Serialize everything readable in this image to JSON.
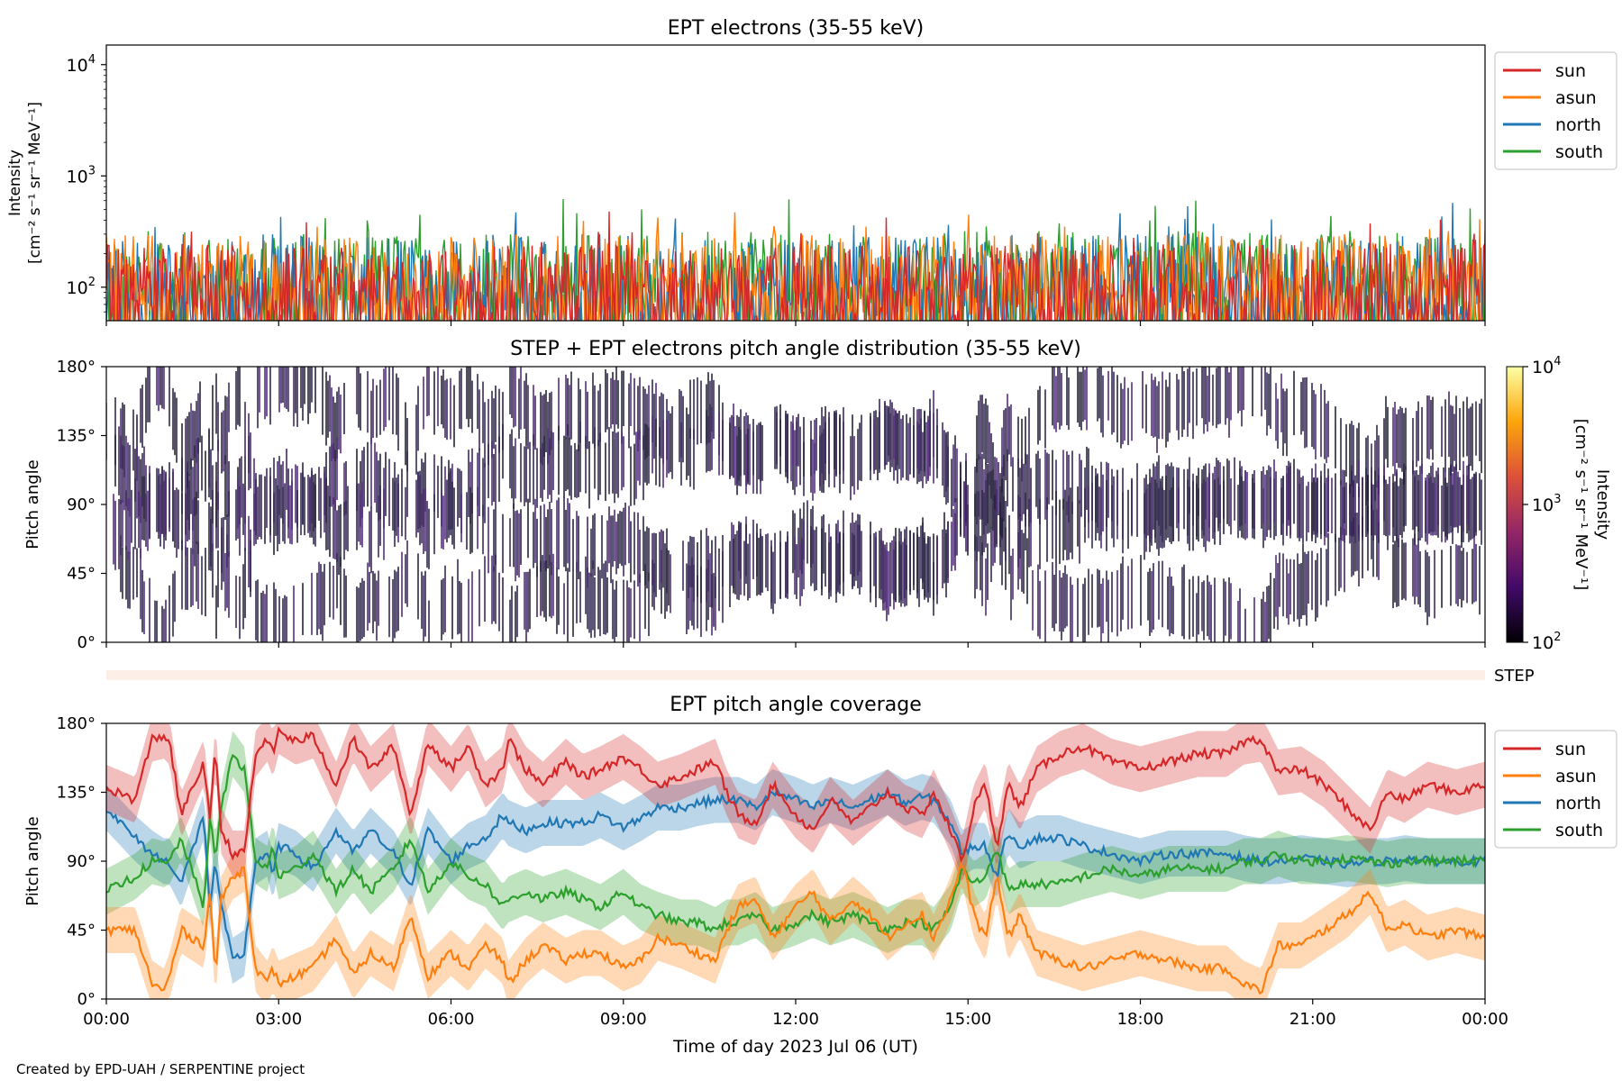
{
  "footer": "Created by EPD-UAH / SERPENTINE project",
  "colors": {
    "sun": "#d62728",
    "asun": "#ff7f0e",
    "north": "#1f77b4",
    "south": "#2ca02c",
    "step_bar": "#fdeee8"
  },
  "chart_data": [
    {
      "type": "line",
      "title": "EPT electrons (35-55 keV)",
      "ylabel": [
        "Intensity",
        "[cm⁻² s⁻¹ sr⁻¹ MeV⁻¹]"
      ],
      "yscale": "log",
      "ylim": [
        50,
        15000
      ],
      "yticks": [
        {
          "value": 100,
          "base": "10",
          "exp": "2"
        },
        {
          "value": 1000,
          "base": "10",
          "exp": "3"
        },
        {
          "value": 10000,
          "base": "10",
          "exp": "4"
        }
      ],
      "xlim_hours": [
        0,
        24
      ],
      "legend": "top-right outside",
      "series": [
        {
          "name": "sun",
          "typical_range": [
            55,
            250
          ],
          "max": 480
        },
        {
          "name": "asun",
          "typical_range": [
            55,
            300
          ],
          "max": 520
        },
        {
          "name": "north",
          "typical_range": [
            55,
            300
          ],
          "max": 600
        },
        {
          "name": "south",
          "typical_range": [
            55,
            320
          ],
          "max": 650
        }
      ]
    },
    {
      "type": "heatmap",
      "title": "STEP + EPT electrons pitch angle distribution (35-55 keV)",
      "ylabel": "Pitch angle",
      "ylim": [
        0,
        180
      ],
      "yticks": [
        "0°",
        "45°",
        "90°",
        "135°",
        "180°"
      ],
      "colorbar": {
        "label": [
          "Intensity",
          "[cm⁻² s⁻¹ sr⁻¹ MeV⁻¹]"
        ],
        "scale": "log",
        "range": [
          100,
          10000
        ],
        "ticks": [
          {
            "value": 100,
            "base": "10",
            "exp": "2"
          },
          {
            "value": 1000,
            "base": "10",
            "exp": "3"
          },
          {
            "value": 10000,
            "base": "10",
            "exp": "4"
          }
        ],
        "colormap": "inferno"
      },
      "note": "Sparse vertical stripes of low intensity (~1e2) following the telescope pitch-angle coverage"
    },
    {
      "type": "bar",
      "label": "STEP",
      "note": "Thin pale band, no visible data"
    },
    {
      "type": "line",
      "title": "EPT pitch angle coverage",
      "ylabel": "Pitch angle",
      "ylim": [
        0,
        180
      ],
      "yticks": [
        "0°",
        "45°",
        "90°",
        "135°",
        "180°"
      ],
      "xlabel": "Time of day 2023 Jul 06 (UT)",
      "xticks": [
        "00:00",
        "03:00",
        "06:00",
        "09:00",
        "12:00",
        "15:00",
        "18:00",
        "21:00",
        "00:00"
      ],
      "legend": "top-right outside",
      "band_halfwidth_deg": 15,
      "x_hours": [
        0,
        0.5,
        0.8,
        1.0,
        1.1,
        1.3,
        1.7,
        1.8,
        1.9,
        2.0,
        2.2,
        2.4,
        2.6,
        2.8,
        2.9,
        3.0,
        3.3,
        3.6,
        4.0,
        4.3,
        4.6,
        5.0,
        5.3,
        5.6,
        6.0,
        6.3,
        6.6,
        6.9,
        7.0,
        7.3,
        7.6,
        8.0,
        8.3,
        8.6,
        9.0,
        9.3,
        9.6,
        10.0,
        10.3,
        10.6,
        10.8,
        11.0,
        11.3,
        11.6,
        12.0,
        12.3,
        12.6,
        13.0,
        13.3,
        13.6,
        13.9,
        14.2,
        14.4,
        14.7,
        14.9,
        15.1,
        15.3,
        15.5,
        15.7,
        15.9,
        16.2,
        16.6,
        17.0,
        17.5,
        18.0,
        18.5,
        19.0,
        19.5,
        19.8,
        20.1,
        20.4,
        20.8,
        21.2,
        21.6,
        22.0,
        22.3,
        22.6,
        23.0,
        23.5,
        24.0
      ],
      "series": [
        {
          "name": "sun",
          "values": [
            138,
            130,
            170,
            172,
            168,
            120,
            155,
            115,
            165,
            110,
            95,
            95,
            160,
            170,
            160,
            175,
            168,
            172,
            140,
            170,
            150,
            165,
            120,
            168,
            150,
            165,
            140,
            150,
            170,
            150,
            140,
            155,
            145,
            150,
            158,
            150,
            140,
            145,
            150,
            155,
            135,
            120,
            115,
            140,
            120,
            110,
            130,
            115,
            125,
            135,
            125,
            120,
            135,
            110,
            90,
            125,
            140,
            100,
            140,
            125,
            150,
            160,
            165,
            155,
            150,
            155,
            160,
            160,
            168,
            170,
            148,
            150,
            140,
            125,
            110,
            135,
            130,
            140,
            135,
            140
          ]
        },
        {
          "name": "asun",
          "values": [
            45,
            45,
            10,
            5,
            15,
            45,
            35,
            70,
            15,
            65,
            80,
            85,
            20,
            10,
            20,
            10,
            15,
            20,
            40,
            15,
            30,
            20,
            55,
            15,
            30,
            20,
            35,
            25,
            10,
            25,
            35,
            25,
            30,
            30,
            20,
            25,
            40,
            35,
            30,
            25,
            45,
            60,
            65,
            40,
            60,
            70,
            50,
            65,
            55,
            40,
            50,
            55,
            40,
            65,
            90,
            55,
            40,
            80,
            40,
            55,
            30,
            25,
            20,
            25,
            30,
            25,
            20,
            20,
            10,
            5,
            35,
            35,
            45,
            55,
            70,
            45,
            50,
            40,
            45,
            40
          ]
        },
        {
          "name": "north",
          "values": [
            125,
            105,
            95,
            90,
            90,
            75,
            120,
            60,
            90,
            60,
            25,
            30,
            90,
            95,
            80,
            100,
            95,
            85,
            110,
            95,
            110,
            95,
            75,
            110,
            90,
            100,
            105,
            120,
            115,
            110,
            115,
            115,
            115,
            120,
            112,
            118,
            125,
            125,
            128,
            130,
            130,
            130,
            125,
            135,
            130,
            125,
            130,
            125,
            130,
            135,
            128,
            132,
            130,
            115,
            95,
            100,
            100,
            80,
            110,
            100,
            105,
            105,
            100,
            95,
            90,
            95,
            95,
            95,
            92,
            90,
            90,
            92,
            90,
            88,
            90,
            90,
            92,
            90,
            90,
            90
          ]
        },
        {
          "name": "south",
          "values": [
            70,
            80,
            90,
            88,
            90,
            105,
            60,
            120,
            90,
            125,
            160,
            150,
            90,
            85,
            100,
            80,
            85,
            95,
            70,
            85,
            70,
            85,
            105,
            70,
            90,
            80,
            75,
            60,
            65,
            70,
            65,
            70,
            65,
            60,
            70,
            60,
            55,
            50,
            50,
            45,
            50,
            50,
            55,
            45,
            50,
            55,
            50,
            55,
            50,
            45,
            50,
            50,
            45,
            60,
            85,
            75,
            80,
            100,
            70,
            75,
            75,
            75,
            80,
            85,
            80,
            85,
            85,
            85,
            90,
            90,
            95,
            90,
            90,
            92,
            90,
            88,
            90,
            90,
            90,
            90
          ]
        }
      ]
    }
  ]
}
